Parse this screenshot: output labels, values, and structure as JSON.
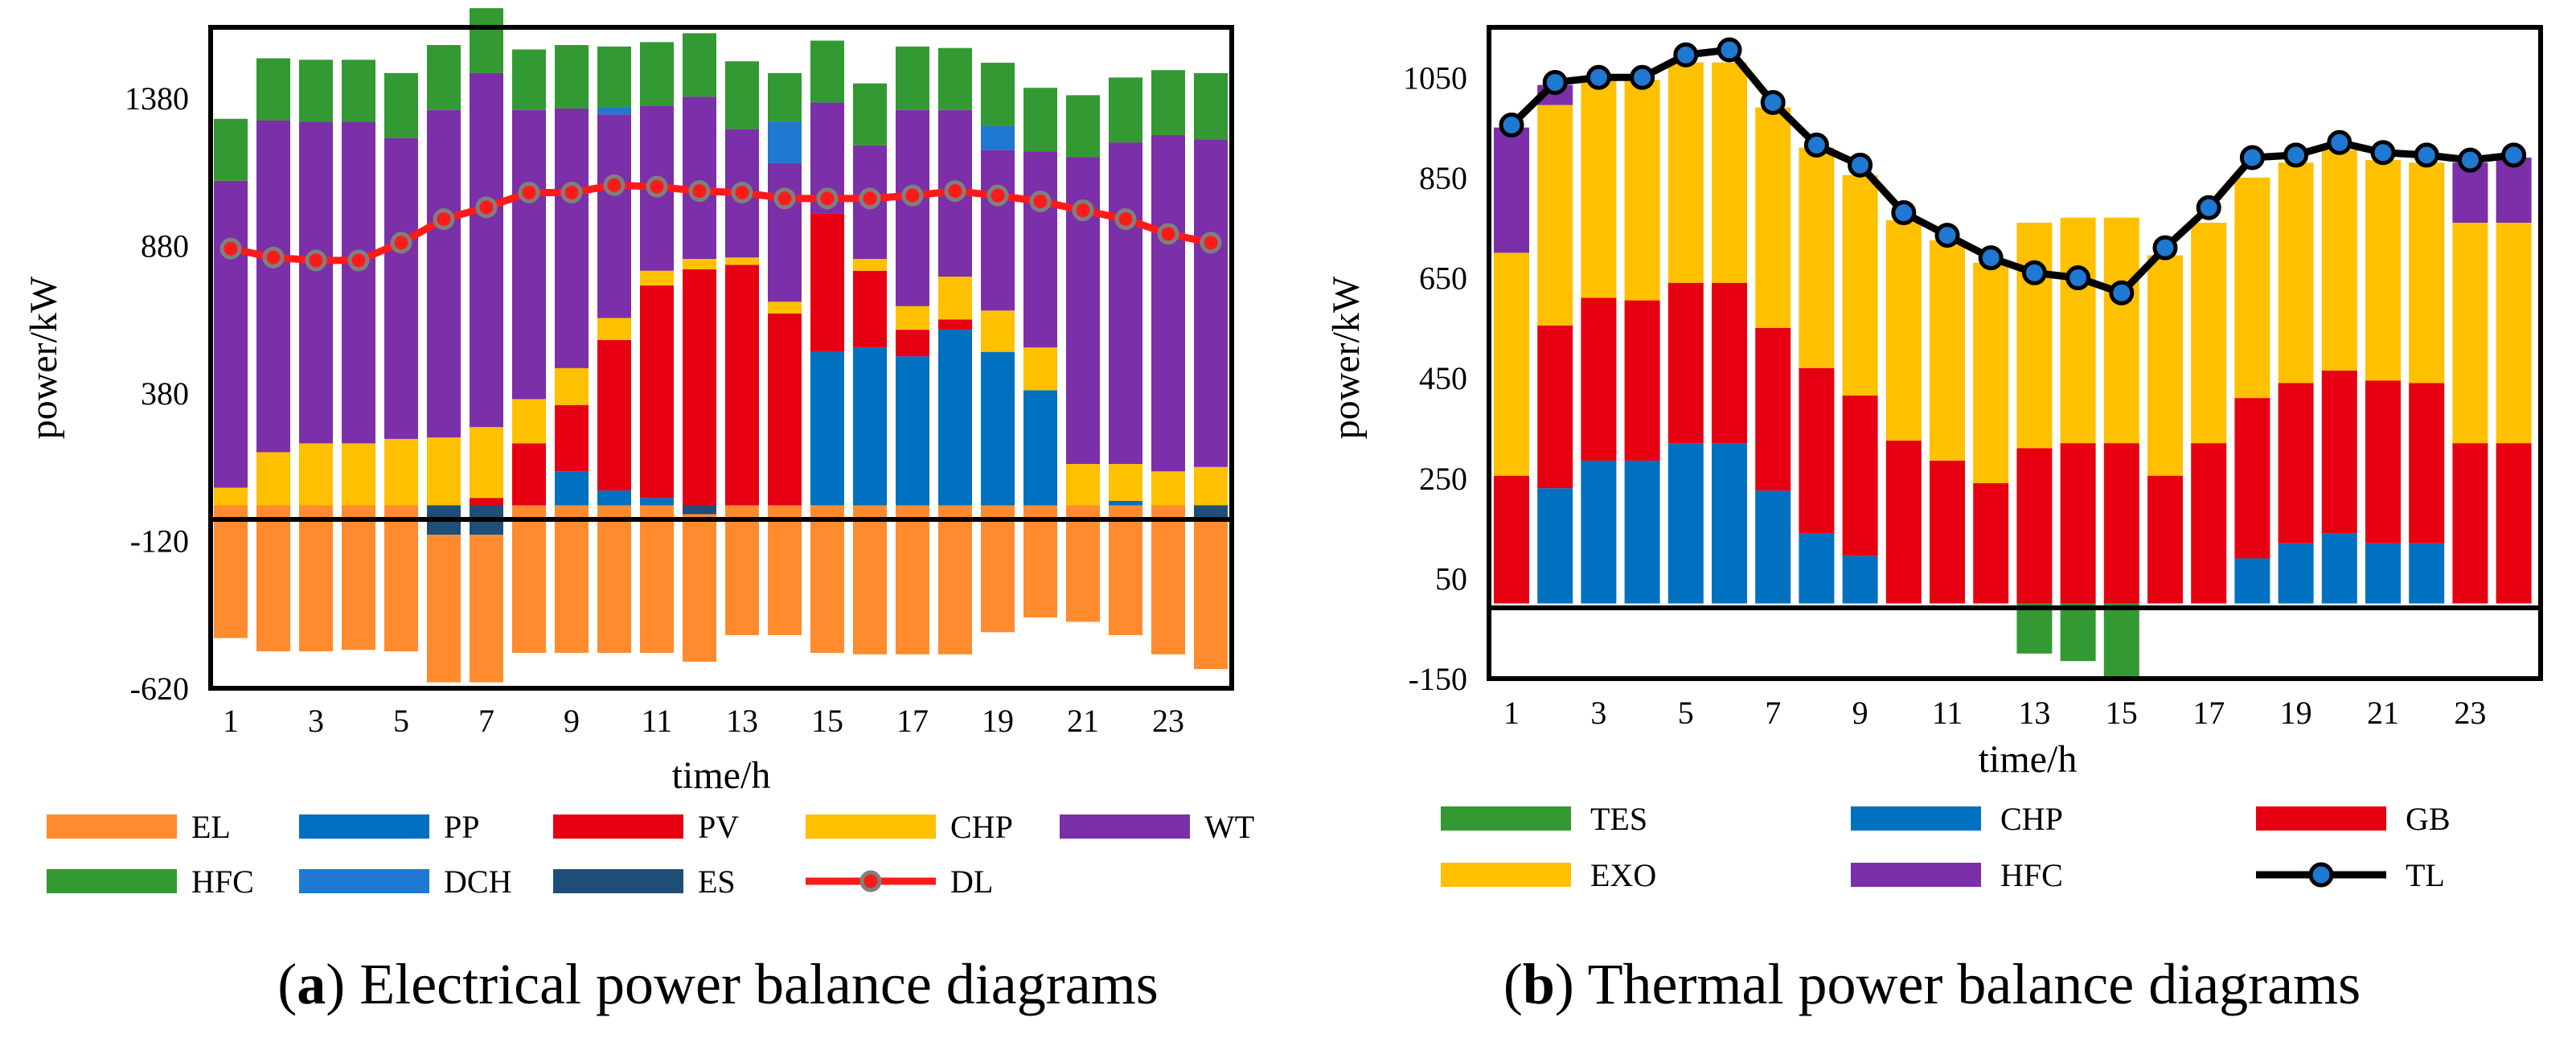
{
  "charts": [
    {
      "id": "a",
      "caption_letter": "a",
      "caption_text": "Electrical power balance diagrams",
      "ylabel": "power/kW",
      "xlabel": "time/h",
      "yticks": [
        "1380",
        "880",
        "380",
        "-120",
        "-620"
      ],
      "xticks": [
        "1",
        "3",
        "5",
        "7",
        "9",
        "11",
        "13",
        "15",
        "17",
        "19",
        "21",
        "23"
      ],
      "legend": [
        {
          "key": "EL",
          "label": "EL",
          "color": "#FF8B2E"
        },
        {
          "key": "PP",
          "label": "PP",
          "color": "#0070C0"
        },
        {
          "key": "PV",
          "label": "PV",
          "color": "#E60012"
        },
        {
          "key": "CHP",
          "label": "CHP",
          "color": "#FFC000"
        },
        {
          "key": "WT",
          "label": "WT",
          "color": "#7B2FA8"
        },
        {
          "key": "HFC",
          "label": "HFC",
          "color": "#339933"
        },
        {
          "key": "DCH",
          "label": "DCH",
          "color": "#1F78D1"
        },
        {
          "key": "ES",
          "label": "ES",
          "color": "#1F4E79"
        },
        {
          "key": "DL",
          "label": "DL",
          "color": "#FF1A1A"
        }
      ]
    },
    {
      "id": "b",
      "caption_letter": "b",
      "caption_text": "Thermal power balance diagrams",
      "ylabel": "power/kW",
      "xlabel": "time/h",
      "yticks": [
        "1050",
        "850",
        "650",
        "450",
        "250",
        "50",
        "-150"
      ],
      "xticks": [
        "1",
        "3",
        "5",
        "7",
        "9",
        "11",
        "13",
        "15",
        "17",
        "19",
        "21",
        "23"
      ],
      "legend": [
        {
          "key": "TES",
          "label": "TES",
          "color": "#339933"
        },
        {
          "key": "CHP",
          "label": "CHP",
          "color": "#0070C0"
        },
        {
          "key": "GB",
          "label": " GB",
          "color": "#E60012"
        },
        {
          "key": "EXO",
          "label": "EXO",
          "color": "#FFC000"
        },
        {
          "key": "HFC",
          "label": "HFC",
          "color": "#7B2FA8"
        },
        {
          "key": "TL",
          "label": "TL",
          "color": "#000000"
        }
      ]
    }
  ],
  "chart_data": [
    {
      "type": "bar",
      "title": "Electrical power balance diagrams",
      "xlabel": "time/h",
      "ylabel": "power/kW",
      "ylim": [
        -620,
        1620
      ],
      "x": [
        1,
        2,
        3,
        4,
        5,
        6,
        7,
        8,
        9,
        10,
        11,
        12,
        13,
        14,
        15,
        16,
        17,
        18,
        19,
        20,
        21,
        22,
        23,
        24
      ],
      "stack_order_positive": [
        "PP",
        "PV",
        "CHP",
        "WT",
        "DCH",
        "HFC"
      ],
      "stack_order_negative": [
        "ES",
        "EL"
      ],
      "series": [
        {
          "name": "PP",
          "color": "#0070C0",
          "values": [
            0,
            0,
            0,
            0,
            0,
            0,
            0,
            0,
            115,
            50,
            25,
            0,
            0,
            0,
            520,
            535,
            505,
            595,
            520,
            390,
            0,
            15,
            0,
            0
          ]
        },
        {
          "name": "PV",
          "color": "#E60012",
          "values": [
            0,
            0,
            0,
            0,
            0,
            0,
            25,
            210,
            225,
            510,
            720,
            800,
            815,
            650,
            470,
            260,
            90,
            35,
            0,
            0,
            0,
            0,
            0,
            0
          ]
        },
        {
          "name": "CHP",
          "color": "#FFC000",
          "values": [
            60,
            180,
            210,
            210,
            225,
            230,
            240,
            150,
            125,
            75,
            50,
            35,
            25,
            40,
            0,
            40,
            80,
            145,
            140,
            145,
            140,
            125,
            115,
            130
          ]
        },
        {
          "name": "WT",
          "color": "#7B2FA8",
          "values": [
            1040,
            1125,
            1090,
            1090,
            1020,
            1110,
            1200,
            980,
            880,
            690,
            560,
            550,
            435,
            470,
            375,
            385,
            665,
            565,
            545,
            665,
            1040,
            1090,
            1140,
            1110
          ]
        },
        {
          "name": "DCH",
          "color": "#1F78D1",
          "values": [
            0,
            0,
            0,
            0,
            0,
            0,
            0,
            0,
            0,
            25,
            0,
            0,
            0,
            140,
            0,
            0,
            0,
            0,
            80,
            0,
            0,
            0,
            0,
            0
          ]
        },
        {
          "name": "HFC",
          "color": "#339933",
          "values": [
            210,
            210,
            210,
            210,
            220,
            220,
            220,
            205,
            215,
            205,
            215,
            215,
            230,
            165,
            210,
            210,
            215,
            210,
            215,
            215,
            210,
            220,
            220,
            225
          ]
        },
        {
          "name": "ES",
          "color": "#1F4E79",
          "values": [
            0,
            0,
            0,
            0,
            0,
            -100,
            -100,
            0,
            0,
            0,
            0,
            -30,
            0,
            0,
            0,
            0,
            0,
            0,
            0,
            0,
            0,
            0,
            0,
            -50
          ]
        },
        {
          "name": "EL",
          "color": "#FF8B2E",
          "values": [
            -450,
            -495,
            -495,
            -490,
            -495,
            -500,
            -500,
            -500,
            -500,
            -500,
            -500,
            -500,
            -440,
            -440,
            -500,
            -505,
            -505,
            -505,
            -430,
            -380,
            -395,
            -440,
            -505,
            -505
          ]
        },
        {
          "name": "DL",
          "type": "line",
          "color": "#FF1A1A",
          "values": [
            870,
            840,
            830,
            830,
            890,
            970,
            1010,
            1060,
            1060,
            1085,
            1080,
            1065,
            1060,
            1040,
            1040,
            1040,
            1050,
            1065,
            1050,
            1030,
            1000,
            970,
            920,
            890
          ]
        }
      ]
    },
    {
      "type": "bar",
      "title": "Thermal power balance diagrams",
      "xlabel": "time/h",
      "ylabel": "power/kW",
      "ylim": [
        -150,
        1150
      ],
      "x": [
        1,
        2,
        3,
        4,
        5,
        6,
        7,
        8,
        9,
        10,
        11,
        12,
        13,
        14,
        15,
        16,
        17,
        18,
        19,
        20,
        21,
        22,
        23,
        24
      ],
      "stack_order_positive": [
        "CHP",
        "GB",
        "EXO",
        "HFC"
      ],
      "stack_order_negative": [
        "TES"
      ],
      "series": [
        {
          "name": "CHP",
          "color": "#0070C0",
          "values": [
            0,
            230,
            285,
            285,
            320,
            320,
            225,
            140,
            95,
            0,
            0,
            0,
            0,
            0,
            0,
            0,
            0,
            90,
            120,
            140,
            120,
            120,
            0,
            0
          ]
        },
        {
          "name": "GB",
          "color": "#E60012",
          "values": [
            255,
            325,
            325,
            320,
            320,
            320,
            325,
            330,
            320,
            325,
            285,
            240,
            310,
            320,
            320,
            255,
            320,
            320,
            320,
            325,
            325,
            320,
            320,
            320
          ]
        },
        {
          "name": "EXO",
          "color": "#FFC000",
          "values": [
            445,
            440,
            440,
            440,
            440,
            440,
            440,
            440,
            440,
            440,
            440,
            440,
            450,
            450,
            450,
            440,
            440,
            440,
            440,
            440,
            440,
            440,
            440,
            440
          ]
        },
        {
          "name": "HFC",
          "color": "#7B2FA8",
          "values": [
            250,
            40,
            0,
            0,
            0,
            0,
            0,
            0,
            0,
            0,
            0,
            0,
            0,
            0,
            0,
            0,
            0,
            0,
            0,
            0,
            0,
            0,
            120,
            130
          ]
        },
        {
          "name": "TES",
          "color": "#339933",
          "values": [
            0,
            0,
            0,
            0,
            0,
            0,
            0,
            0,
            0,
            0,
            0,
            0,
            -100,
            -115,
            -150,
            0,
            0,
            0,
            0,
            0,
            0,
            0,
            0,
            0
          ]
        },
        {
          "name": "TL",
          "type": "line",
          "color": "#000000",
          "values": [
            955,
            1040,
            1050,
            1050,
            1095,
            1105,
            1000,
            915,
            875,
            780,
            735,
            690,
            660,
            650,
            620,
            710,
            790,
            890,
            895,
            920,
            900,
            895,
            885,
            895
          ]
        }
      ]
    }
  ]
}
